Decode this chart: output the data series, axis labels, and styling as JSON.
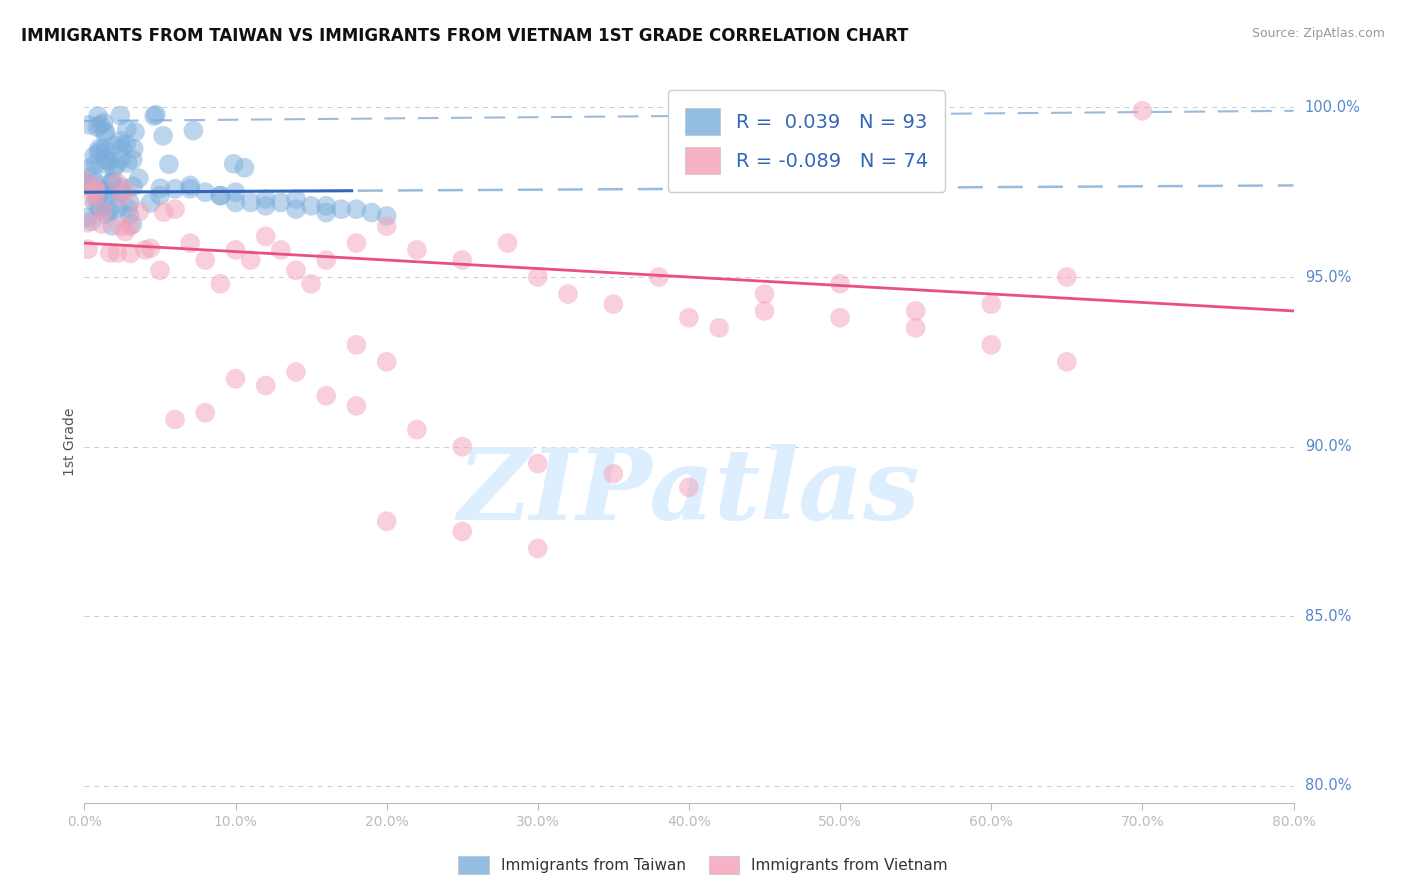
{
  "title": "IMMIGRANTS FROM TAIWAN VS IMMIGRANTS FROM VIETNAM 1ST GRADE CORRELATION CHART",
  "source": "Source: ZipAtlas.com",
  "ylabel": "1st Grade",
  "xlim": [
    0.0,
    0.8
  ],
  "ylim": [
    0.795,
    1.008
  ],
  "taiwan_R": 0.039,
  "taiwan_N": 93,
  "vietnam_R": -0.089,
  "vietnam_N": 74,
  "taiwan_color": "#7AADDB",
  "vietnam_color": "#F4A0B8",
  "taiwan_line_color": "#3366BB",
  "vietnam_line_color": "#E85080",
  "dashed_line_color": "#99BBDD",
  "grid_color": "#CCCCCC",
  "background_color": "#FFFFFF",
  "title_color": "#111111",
  "tick_color": "#5588CC",
  "ylabel_color": "#555555",
  "source_color": "#999999",
  "legend_text_color": "#3366BB",
  "taiwan_line_y0": 0.975,
  "taiwan_line_y1": 0.977,
  "taiwan_line_x_solid_end": 0.18,
  "vietnam_line_y0": 0.96,
  "vietnam_line_y1": 0.94,
  "dashed_line_y0": 0.996,
  "dashed_line_y1": 0.999,
  "watermark_text": "ZIPatlas",
  "watermark_color": "#DDEEFF"
}
